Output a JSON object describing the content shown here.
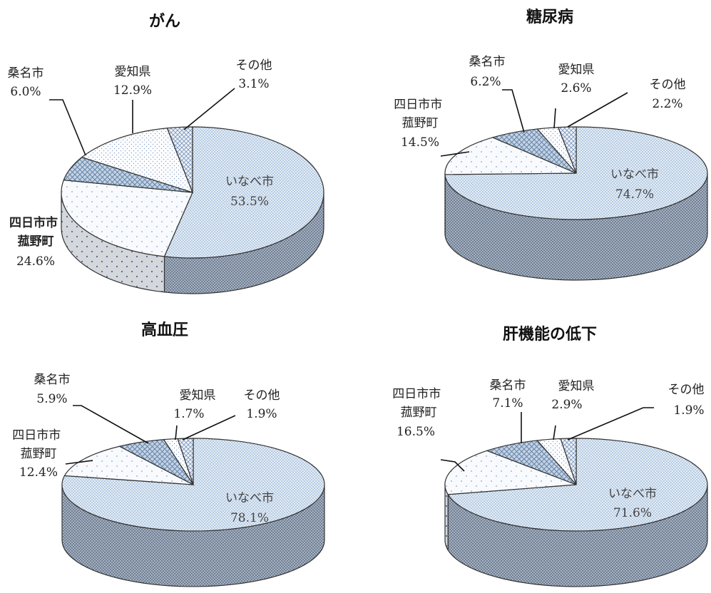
{
  "chart_data": [
    {
      "type": "pie",
      "style": "3d",
      "title": "がん",
      "categories": [
        "いなべ市",
        "四日市市 菰野町",
        "桑名市",
        "愛知県",
        "その他"
      ],
      "values": [
        53.5,
        24.6,
        6.0,
        12.9,
        3.1
      ],
      "labels": [
        {
          "name": "いなべ市",
          "value": "53.5%"
        },
        {
          "name": "四日市市\n菰野町",
          "value": "24.6%"
        },
        {
          "name": "桑名市",
          "value": "6.0%"
        },
        {
          "name": "愛知県",
          "value": "12.9%"
        },
        {
          "name": "その他",
          "value": "3.1%"
        }
      ]
    },
    {
      "type": "pie",
      "style": "3d",
      "title": "糖尿病",
      "categories": [
        "いなべ市",
        "四日市市 菰野町",
        "桑名市",
        "愛知県",
        "その他"
      ],
      "values": [
        74.7,
        14.5,
        6.2,
        2.6,
        2.2
      ],
      "labels": [
        {
          "name": "いなべ市",
          "value": "74.7%"
        },
        {
          "name": "四日市市\n菰野町",
          "value": "14.5%"
        },
        {
          "name": "桑名市",
          "value": "6.2%"
        },
        {
          "name": "愛知県",
          "value": "2.6%"
        },
        {
          "name": "その他",
          "value": "2.2%"
        }
      ]
    },
    {
      "type": "pie",
      "style": "3d",
      "title": "高血圧",
      "categories": [
        "いなべ市",
        "四日市市 菰野町",
        "桑名市",
        "愛知県",
        "その他"
      ],
      "values": [
        78.1,
        12.4,
        5.9,
        1.7,
        1.9
      ],
      "labels": [
        {
          "name": "いなべ市",
          "value": "78.1%"
        },
        {
          "name": "四日市市\n菰野町",
          "value": "12.4%"
        },
        {
          "name": "桑名市",
          "value": "5.9%"
        },
        {
          "name": "愛知県",
          "value": "1.7%"
        },
        {
          "name": "その他",
          "value": "1.9%"
        }
      ]
    },
    {
      "type": "pie",
      "style": "3d",
      "title": "肝機能の低下",
      "categories": [
        "いなべ市",
        "四日市市 菰野町",
        "桑名市",
        "愛知県",
        "その他"
      ],
      "values": [
        71.6,
        16.5,
        7.1,
        2.9,
        1.9
      ],
      "labels": [
        {
          "name": "いなべ市",
          "value": "71.6%"
        },
        {
          "name": "四日市市\n菰野町",
          "value": "16.5%"
        },
        {
          "name": "桑名市",
          "value": "7.1%"
        },
        {
          "name": "愛知県",
          "value": "2.9%"
        },
        {
          "name": "その他",
          "value": "1.9%"
        }
      ]
    }
  ]
}
